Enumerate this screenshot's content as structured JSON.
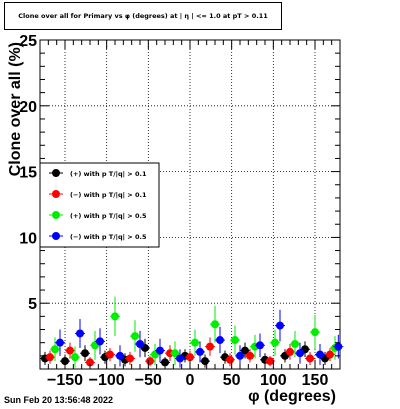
{
  "header": {
    "title": "Clone  over all for Primary vs φ (degrees) at | η | <= 1.0 at pT > 0.11"
  },
  "footer": {
    "timestamp": "Sun Feb 20 13:56:48 2022"
  },
  "colors": {
    "plus_0_1": "#000000",
    "minus_0_1": "#ff0000",
    "plus_0_5": "#00ee00",
    "minus_0_5": "#0000ff"
  },
  "chart_data": {
    "type": "scatter",
    "title": "Clone  over all for Primary vs φ (degrees) at | η | <= 1.0 at pT > 0.11",
    "xlabel": "φ (degrees)",
    "ylabel": "Clone  over all (%)",
    "xlim": [
      -180,
      180
    ],
    "ylim": [
      0,
      25
    ],
    "xticks": [
      -150,
      -100,
      -50,
      0,
      50,
      100,
      150
    ],
    "xtick_labels": [
      "−150",
      "−100",
      "−50",
      "0",
      "50",
      "100",
      "150"
    ],
    "yticks": [
      5,
      10,
      15,
      20,
      25
    ],
    "ytick_labels": [
      "5",
      "10",
      "15",
      "20",
      "25"
    ],
    "grid": true,
    "legend_position": "left",
    "series": [
      {
        "name": "(+) with p T/|q| > 0.1",
        "color": "#000000",
        "x": [
          -174,
          -150,
          -126,
          -102,
          -78,
          -54,
          -30,
          -6,
          18,
          42,
          66,
          90,
          114,
          138,
          162
        ],
        "y": [
          0.8,
          0.6,
          1.2,
          0.9,
          0.7,
          1.6,
          0.5,
          1.0,
          0.6,
          0.9,
          1.4,
          0.7,
          1.0,
          1.5,
          0.8
        ],
        "err": [
          0.5,
          0.5,
          0.6,
          0.5,
          0.5,
          0.7,
          0.4,
          0.5,
          0.5,
          0.5,
          0.6,
          0.5,
          0.5,
          0.6,
          0.5
        ]
      },
      {
        "name": "(−) with p T/|q| > 0.1",
        "color": "#ff0000",
        "x": [
          -168,
          -144,
          -120,
          -96,
          -72,
          -48,
          -24,
          0,
          24,
          48,
          72,
          96,
          120,
          144,
          168
        ],
        "y": [
          0.9,
          1.4,
          0.5,
          1.1,
          0.8,
          0.6,
          1.2,
          0.9,
          1.7,
          0.7,
          1.0,
          0.6,
          1.3,
          0.8,
          1.1
        ],
        "err": [
          0.5,
          0.6,
          0.4,
          0.5,
          0.5,
          0.4,
          0.6,
          0.5,
          0.7,
          0.5,
          0.5,
          0.4,
          0.6,
          0.5,
          0.5
        ]
      },
      {
        "name": "(+) with p T/|q| > 0.5",
        "color": "#00ee00",
        "x": [
          -162,
          -138,
          -114,
          -90,
          -66,
          -42,
          -18,
          6,
          30,
          54,
          78,
          102,
          126,
          150,
          174
        ],
        "y": [
          1.5,
          0.9,
          1.8,
          4.0,
          2.5,
          1.1,
          1.2,
          2.0,
          3.4,
          2.2,
          1.7,
          2.0,
          1.9,
          2.8,
          1.6
        ],
        "err": [
          0.9,
          0.8,
          1.1,
          1.5,
          1.2,
          0.8,
          0.9,
          1.0,
          1.4,
          1.1,
          0.9,
          1.0,
          1.0,
          1.3,
          0.9
        ]
      },
      {
        "name": "(−) with p T/|q| > 0.5",
        "color": "#0000ff",
        "x": [
          -156,
          -132,
          -108,
          -84,
          -60,
          -36,
          -12,
          12,
          36,
          60,
          84,
          108,
          132,
          156,
          178
        ],
        "y": [
          2.0,
          2.7,
          2.1,
          1.0,
          1.9,
          1.4,
          0.8,
          1.3,
          2.2,
          1.0,
          1.8,
          3.3,
          1.2,
          1.1,
          1.7
        ],
        "err": [
          1.0,
          1.1,
          1.0,
          0.8,
          1.0,
          0.9,
          0.7,
          0.8,
          1.0,
          0.8,
          0.9,
          1.2,
          0.8,
          0.8,
          0.9
        ]
      }
    ]
  }
}
